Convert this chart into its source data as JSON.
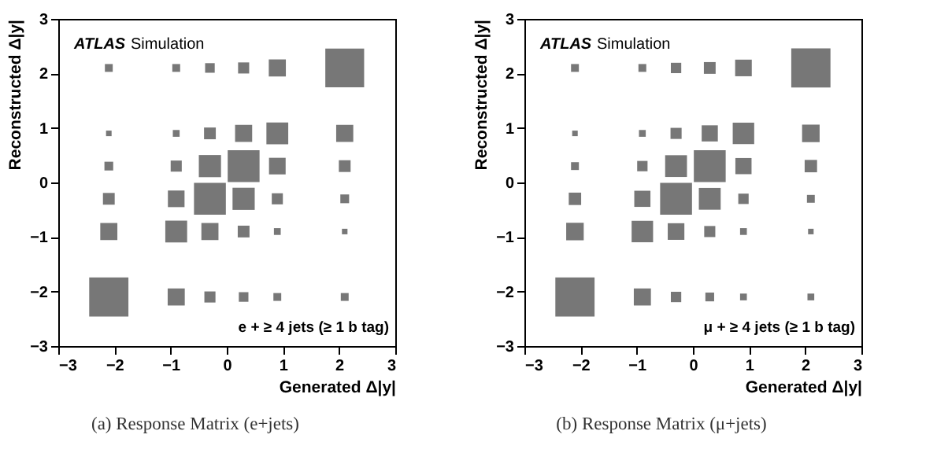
{
  "chart_data": [
    {
      "type": "bubble",
      "marker": "square",
      "legend": false,
      "grid": false,
      "color": "#777777",
      "xlabel": "Generated Δ|y|",
      "ylabel": "Reconstructed Δ|y|",
      "xlim": [
        -3,
        3
      ],
      "xticks": [
        -3,
        -2,
        -1,
        0,
        1,
        2,
        3
      ],
      "ylim": [
        -3,
        3
      ],
      "yticks": [
        -3,
        -2,
        -1,
        0,
        1,
        2,
        3
      ],
      "annotations": [
        "ATLAS",
        "Simulation",
        "e + ≥ 4 jets (≥ 1 b tag)",
        "(a) Response Matrix (e+jets)"
      ],
      "x": [
        -2.1,
        -0.9,
        -0.3,
        0.3,
        0.9,
        2.1,
        -2.1,
        -0.9,
        -0.3,
        0.3,
        0.9,
        2.1,
        -2.1,
        -0.9,
        -0.3,
        0.3,
        0.9,
        2.1,
        -2.1,
        -0.9,
        -0.3,
        0.3,
        0.9,
        2.1,
        -2.1,
        -0.9,
        -0.3,
        0.3,
        0.9,
        2.1,
        -2.1,
        -0.9,
        -0.3,
        0.3,
        0.9,
        2.1
      ],
      "values": [
        2.1,
        2.1,
        2.1,
        2.1,
        2.1,
        2.1,
        0.9,
        0.9,
        0.9,
        0.9,
        0.9,
        0.9,
        0.3,
        0.3,
        0.3,
        0.3,
        0.3,
        0.3,
        -0.3,
        -0.3,
        -0.3,
        -0.3,
        -0.3,
        -0.3,
        -0.9,
        -0.9,
        -0.9,
        -0.9,
        -0.9,
        -0.9,
        -2.1,
        -2.1,
        -2.1,
        -2.1,
        -2.1,
        -2.1
      ],
      "sizes": [
        0.04,
        0.04,
        0.06,
        0.08,
        0.19,
        0.98,
        0.02,
        0.03,
        0.09,
        0.19,
        0.31,
        0.19,
        0.05,
        0.08,
        0.32,
        0.66,
        0.18,
        0.09,
        0.09,
        0.18,
        0.66,
        0.32,
        0.08,
        0.05,
        0.19,
        0.31,
        0.19,
        0.09,
        0.03,
        0.02,
        1,
        0.19,
        0.08,
        0.06,
        0.04,
        0.04
      ]
    },
    {
      "type": "bubble",
      "marker": "square",
      "legend": false,
      "grid": false,
      "color": "#777777",
      "xlabel": "Generated Δ|y|",
      "ylabel": "Reconstructed Δ|y|",
      "xlim": [
        -3,
        3
      ],
      "xticks": [
        -3,
        -2,
        -1,
        0,
        1,
        2,
        3
      ],
      "ylim": [
        -3,
        3
      ],
      "yticks": [
        -3,
        -2,
        -1,
        0,
        1,
        2,
        3
      ],
      "annotations": [
        "ATLAS",
        "Simulation",
        "μ + ≥ 4 jets (≥ 1 b tag)",
        "(b) Response Matrix (μ+jets)"
      ],
      "x": [
        -2.1,
        -0.9,
        -0.3,
        0.3,
        0.9,
        2.1,
        -2.1,
        -0.9,
        -0.3,
        0.3,
        0.9,
        2.1,
        -2.1,
        -0.9,
        -0.3,
        0.3,
        0.9,
        2.1,
        -2.1,
        -0.9,
        -0.3,
        0.3,
        0.9,
        2.1,
        -2.1,
        -0.9,
        -0.3,
        0.3,
        0.9,
        2.1,
        -2.1,
        -0.9,
        -0.3,
        0.3,
        0.9,
        2.1
      ],
      "values": [
        2.1,
        2.1,
        2.1,
        2.1,
        2.1,
        2.1,
        0.9,
        0.9,
        0.9,
        0.9,
        0.9,
        0.9,
        0.3,
        0.3,
        0.3,
        0.3,
        0.3,
        0.3,
        -0.3,
        -0.3,
        -0.3,
        -0.3,
        -0.3,
        -0.3,
        -0.9,
        -0.9,
        -0.9,
        -0.9,
        -0.9,
        -0.9,
        -2.1,
        -2.1,
        -2.1,
        -2.1,
        -2.1,
        -2.1
      ],
      "sizes": [
        0.04,
        0.04,
        0.07,
        0.09,
        0.18,
        1,
        0.02,
        0.03,
        0.08,
        0.17,
        0.3,
        0.2,
        0.04,
        0.07,
        0.31,
        0.66,
        0.17,
        0.1,
        0.1,
        0.17,
        0.66,
        0.31,
        0.07,
        0.04,
        0.2,
        0.3,
        0.18,
        0.08,
        0.03,
        0.02,
        1,
        0.19,
        0.07,
        0.05,
        0.03,
        0.03
      ]
    }
  ]
}
